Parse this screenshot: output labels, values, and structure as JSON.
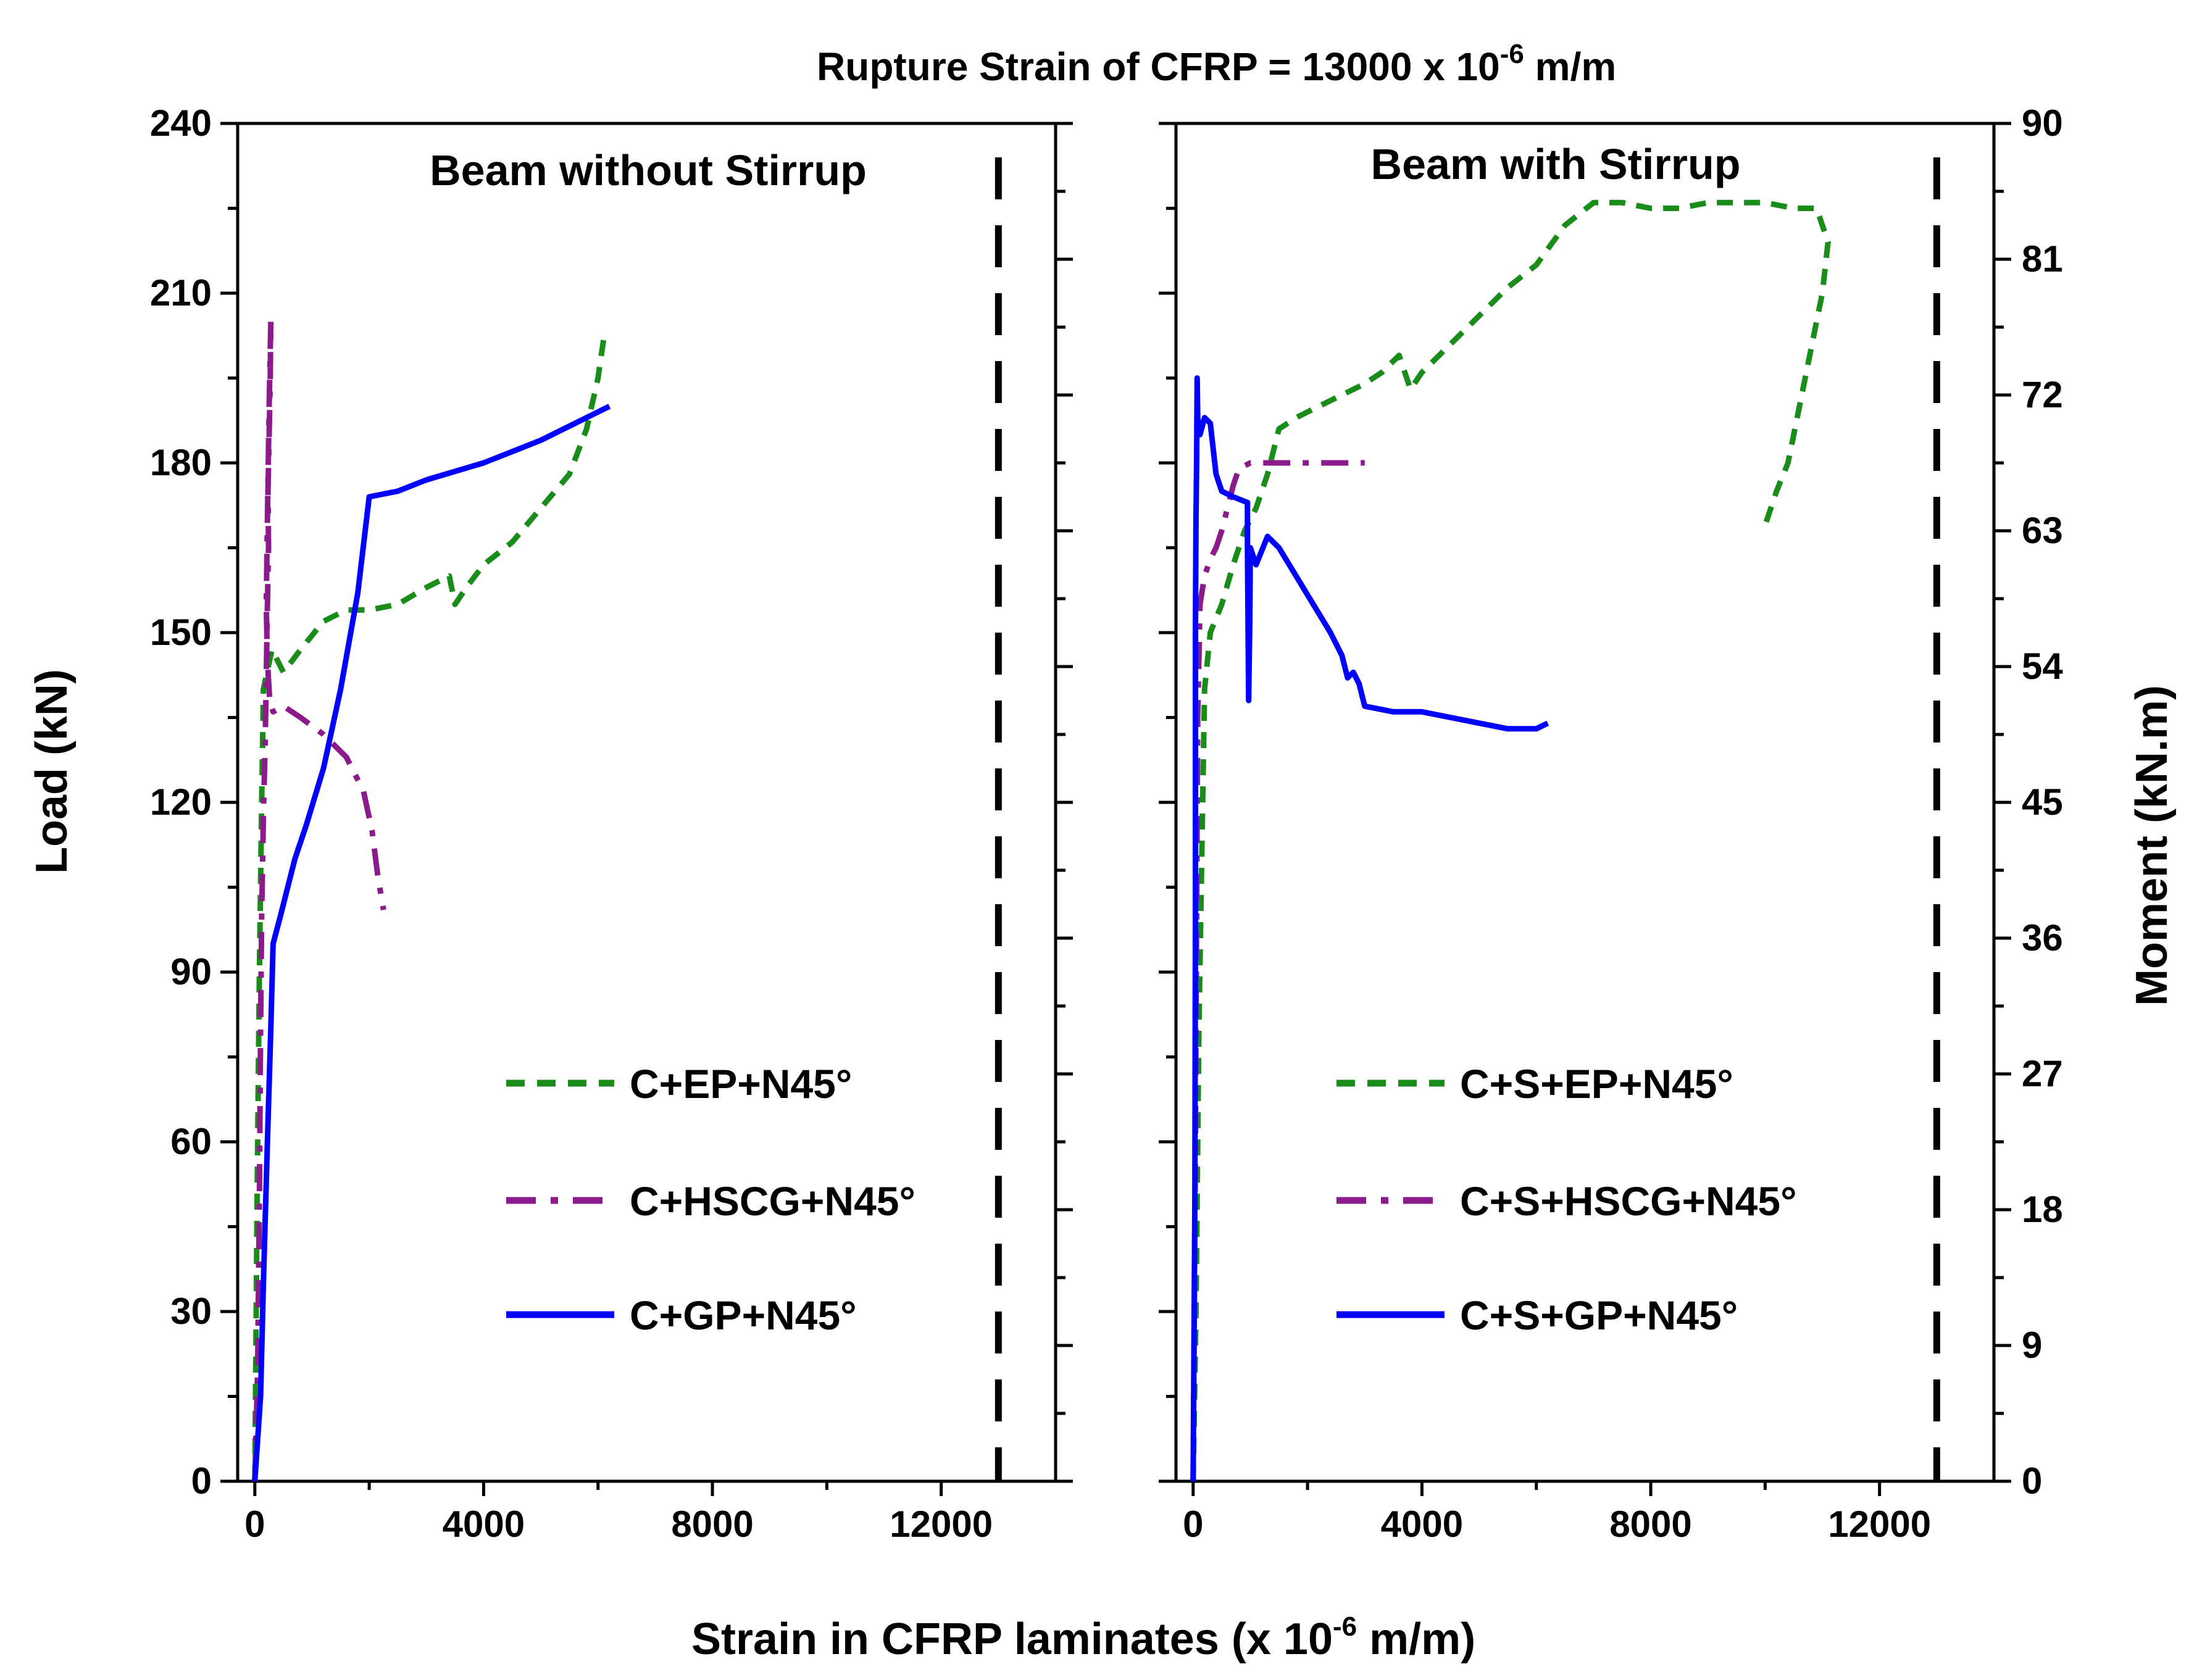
{
  "chart_data": {
    "type": "line",
    "title": "Rupture Strain of CFRP  = 13000 x 10",
    "title_sup": "-6",
    "title_unit": " m/m",
    "xlabel": "Strain in CFRP laminates (x 10",
    "xlabel_sup": "-6",
    "xlabel_unit": " m/m)",
    "ylabel_left": "Load (kN)",
    "ylabel_right": "Moment (kN.m)",
    "xlim": [
      -300,
      14000
    ],
    "ylim": [
      0,
      240
    ],
    "x_ticks": [
      0,
      4000,
      8000,
      12000
    ],
    "x_tick_labels": [
      "0",
      "4000",
      "8000",
      "12000"
    ],
    "y_ticks": [
      0,
      30,
      60,
      90,
      120,
      150,
      180,
      210,
      240
    ],
    "y_tick_labels": [
      "0",
      "30",
      "60",
      "90",
      "120",
      "150",
      "180",
      "210",
      "240"
    ],
    "moment_ticks": [
      0,
      9,
      18,
      27,
      36,
      45,
      54,
      63,
      72,
      81,
      90
    ],
    "moment_tick_labels": [
      "0",
      "9",
      "18",
      "27",
      "36",
      "45",
      "54",
      "63",
      "72",
      "81",
      "90"
    ],
    "moment_per_load": 0.375,
    "rupture_strain": 13000,
    "panels": [
      {
        "title": "Beam without Stirrup",
        "series": [
          {
            "name": "C+EP+N45°",
            "color": "#1a8c1a",
            "style": "dash",
            "points": [
              [
                0,
                0
              ],
              [
                40,
                50
              ],
              [
                80,
                90
              ],
              [
                120,
                120
              ],
              [
                150,
                140
              ],
              [
                300,
                147
              ],
              [
                500,
                143
              ],
              [
                800,
                147
              ],
              [
                1200,
                152
              ],
              [
                1600,
                154
              ],
              [
                2000,
                154
              ],
              [
                2500,
                155
              ],
              [
                3000,
                158
              ],
              [
                3400,
                160
              ],
              [
                3500,
                155
              ],
              [
                3700,
                158
              ],
              [
                4000,
                162
              ],
              [
                4500,
                166
              ],
              [
                5000,
                172
              ],
              [
                5500,
                178
              ],
              [
                5800,
                186
              ],
              [
                6000,
                195
              ],
              [
                6100,
                202
              ]
            ]
          },
          {
            "name": "C+HSCG+N45°",
            "color": "#8b1a8b",
            "style": "dashdot",
            "points": [
              [
                0,
                0
              ],
              [
                50,
                20
              ],
              [
                80,
                50
              ],
              [
                100,
                80
              ],
              [
                120,
                100
              ],
              [
                150,
                118
              ],
              [
                180,
                130
              ],
              [
                200,
                142
              ],
              [
                220,
                155
              ],
              [
                240,
                165
              ],
              [
                230,
                175
              ],
              [
                250,
                185
              ],
              [
                270,
                195
              ],
              [
                280,
                205
              ],
              [
                250,
                190
              ],
              [
                220,
                170
              ],
              [
                200,
                155
              ],
              [
                220,
                145
              ],
              [
                260,
                138
              ],
              [
                320,
                136
              ],
              [
                500,
                137
              ],
              [
                800,
                135
              ],
              [
                1200,
                132
              ],
              [
                1600,
                128
              ],
              [
                1900,
                122
              ],
              [
                2050,
                115
              ],
              [
                2150,
                107
              ],
              [
                2250,
                101
              ]
            ]
          },
          {
            "name": "C+GP+N45°",
            "color": "#0000ff",
            "style": "solid",
            "points": [
              [
                0,
                0
              ],
              [
                100,
                15
              ],
              [
                150,
                35
              ],
              [
                220,
                60
              ],
              [
                280,
                80
              ],
              [
                320,
                95
              ],
              [
                450,
                100
              ],
              [
                600,
                106
              ],
              [
                700,
                110
              ],
              [
                900,
                116
              ],
              [
                1200,
                126
              ],
              [
                1500,
                140
              ],
              [
                1800,
                157
              ],
              [
                2000,
                174
              ],
              [
                2500,
                175
              ],
              [
                3000,
                177
              ],
              [
                4000,
                180
              ],
              [
                5000,
                184
              ],
              [
                6000,
                189
              ],
              [
                6200,
                190
              ]
            ]
          }
        ]
      },
      {
        "title": "Beam with Stirrup",
        "series": [
          {
            "name": "C+S+EP+N45°",
            "color": "#1a8c1a",
            "style": "dash",
            "points": [
              [
                0,
                0
              ],
              [
                50,
                30
              ],
              [
                100,
                80
              ],
              [
                200,
                140
              ],
              [
                300,
                150
              ],
              [
                500,
                155
              ],
              [
                700,
                162
              ],
              [
                900,
                168
              ],
              [
                1100,
                172
              ],
              [
                1300,
                178
              ],
              [
                1500,
                186
              ],
              [
                1800,
                188
              ],
              [
                2200,
                190
              ],
              [
                2600,
                192
              ],
              [
                3000,
                194
              ],
              [
                3300,
                196
              ],
              [
                3600,
                199
              ],
              [
                3800,
                193
              ],
              [
                4000,
                196
              ],
              [
                4500,
                201
              ],
              [
                5000,
                206
              ],
              [
                5500,
                211
              ],
              [
                6000,
                215
              ],
              [
                6500,
                222
              ],
              [
                7000,
                226
              ],
              [
                7500,
                226
              ],
              [
                8000,
                225
              ],
              [
                8500,
                225
              ],
              [
                9000,
                226
              ],
              [
                9500,
                226
              ],
              [
                10000,
                226
              ],
              [
                10500,
                225
              ],
              [
                10900,
                225
              ],
              [
                11100,
                219
              ],
              [
                11000,
                210
              ],
              [
                10800,
                200
              ],
              [
                10600,
                190
              ],
              [
                10400,
                180
              ],
              [
                10200,
                175
              ],
              [
                10000,
                169
              ]
            ]
          },
          {
            "name": "C+S+HSCG+N45°",
            "color": "#8b1a8b",
            "style": "dashdot",
            "points": [
              [
                0,
                0
              ],
              [
                40,
                60
              ],
              [
                60,
                100
              ],
              [
                80,
                135
              ],
              [
                120,
                155
              ],
              [
                200,
                160
              ],
              [
                300,
                163
              ],
              [
                400,
                165
              ],
              [
                500,
                168
              ],
              [
                600,
                172
              ],
              [
                700,
                176
              ],
              [
                800,
                179
              ],
              [
                1000,
                180
              ],
              [
                1500,
                180
              ],
              [
                2000,
                180
              ],
              [
                2500,
                180
              ],
              [
                3000,
                180
              ]
            ]
          },
          {
            "name": "C+S+GP+N45°",
            "color": "#0000ff",
            "style": "solid",
            "points": [
              [
                0,
                0
              ],
              [
                30,
                50
              ],
              [
                40,
                100
              ],
              [
                40,
                150
              ],
              [
                50,
                170
              ],
              [
                60,
                180
              ],
              [
                70,
                195
              ],
              [
                80,
                188
              ],
              [
                120,
                185
              ],
              [
                200,
                188
              ],
              [
                300,
                187
              ],
              [
                400,
                178
              ],
              [
                500,
                175
              ],
              [
                700,
                174
              ],
              [
                950,
                173
              ],
              [
                950,
                165
              ],
              [
                970,
                138
              ],
              [
                990,
                152
              ],
              [
                1000,
                165
              ],
              [
                1100,
                162
              ],
              [
                1300,
                167
              ],
              [
                1500,
                165
              ],
              [
                1800,
                160
              ],
              [
                2100,
                155
              ],
              [
                2400,
                150
              ],
              [
                2600,
                146
              ],
              [
                2700,
                142
              ],
              [
                2800,
                143
              ],
              [
                2900,
                141
              ],
              [
                3000,
                137
              ],
              [
                3500,
                136
              ],
              [
                4000,
                136
              ],
              [
                4500,
                135
              ],
              [
                5000,
                134
              ],
              [
                5500,
                133
              ],
              [
                6000,
                133
              ],
              [
                6200,
                134
              ]
            ]
          }
        ]
      }
    ]
  }
}
